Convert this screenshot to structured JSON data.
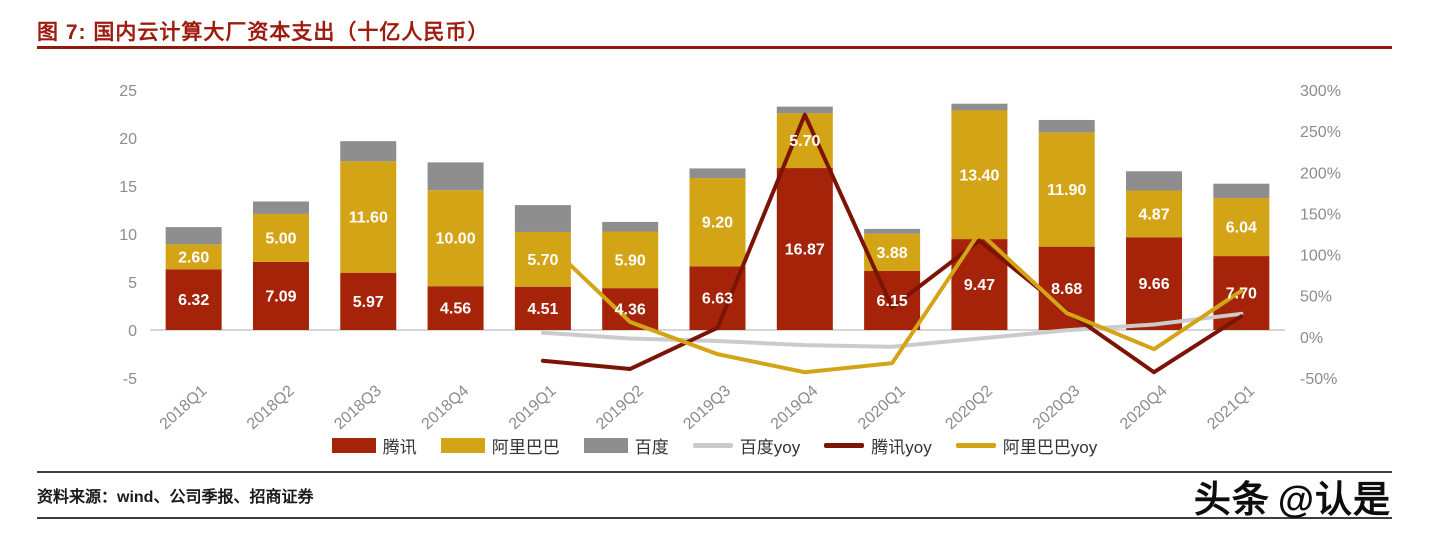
{
  "title": "图 7: 国内云计算大厂资本支出（十亿人民币）",
  "footer": {
    "source": "资料来源：wind、公司季报、招商证券"
  },
  "watermark": {
    "brand": "头条",
    "handle": "@认是"
  },
  "colors": {
    "title_red": "#9E1C0F",
    "tencent_bar": "#A42309",
    "alibaba_bar": "#D4A417",
    "baidu_bar": "#8E8E8E",
    "baidu_yoy_line": "#CBCBCB",
    "tencent_yoy_line": "#7C1405",
    "alibaba_yoy_line": "#D4A417"
  },
  "chart_data": {
    "type": "bar",
    "title": "图 7: 国内云计算大厂资本支出（十亿人民币）",
    "categories": [
      "2018Q1",
      "2018Q2",
      "2018Q3",
      "2018Q4",
      "2019Q1",
      "2019Q2",
      "2019Q3",
      "2019Q4",
      "2020Q1",
      "2020Q2",
      "2020Q3",
      "2020Q4",
      "2021Q1"
    ],
    "stacked": true,
    "grid": false,
    "legend_position": "bottom",
    "left_axis": {
      "min": -5,
      "max": 25,
      "ticks": [
        25,
        20,
        15,
        10,
        5,
        0,
        -5
      ]
    },
    "right_axis": {
      "min": -50,
      "max": 300,
      "ticks": [
        "300%",
        "250%",
        "200%",
        "150%",
        "100%",
        "50%",
        "0%",
        "-50%"
      ]
    },
    "series": [
      {
        "name": "腾讯",
        "type": "bar",
        "color": "#A42309",
        "labeled": true,
        "values": [
          6.32,
          7.09,
          5.97,
          4.56,
          4.51,
          4.36,
          6.63,
          16.87,
          6.15,
          9.47,
          8.68,
          9.66,
          7.7
        ]
      },
      {
        "name": "阿里巴巴",
        "type": "bar",
        "color": "#D4A417",
        "labeled": true,
        "values": [
          2.6,
          5.0,
          11.6,
          10.0,
          5.7,
          5.9,
          9.2,
          5.7,
          3.88,
          13.4,
          11.9,
          4.87,
          6.04
        ]
      },
      {
        "name": "百度",
        "type": "bar",
        "color": "#8E8E8E",
        "labeled": false,
        "values": [
          1.8,
          1.3,
          2.1,
          2.9,
          2.8,
          1.0,
          1.0,
          0.7,
          0.5,
          0.7,
          1.3,
          2.0,
          1.5
        ]
      },
      {
        "name": "百度yoy",
        "type": "line",
        "axis": "right",
        "color": "#CBCBCB",
        "values": [
          null,
          null,
          null,
          null,
          5,
          -2,
          -5,
          -10,
          -12,
          -2,
          8,
          15,
          28
        ]
      },
      {
        "name": "腾讯yoy",
        "type": "line",
        "axis": "right",
        "color": "#7C1405",
        "values": [
          null,
          null,
          null,
          null,
          -29,
          -39,
          11,
          270,
          36,
          117,
          31,
          -43,
          25
        ]
      },
      {
        "name": "阿里巴巴yoy",
        "type": "line",
        "axis": "right",
        "color": "#D4A417",
        "values": [
          null,
          null,
          null,
          null,
          119,
          18,
          -21,
          -43,
          -32,
          127,
          29,
          -15,
          56
        ]
      }
    ]
  }
}
